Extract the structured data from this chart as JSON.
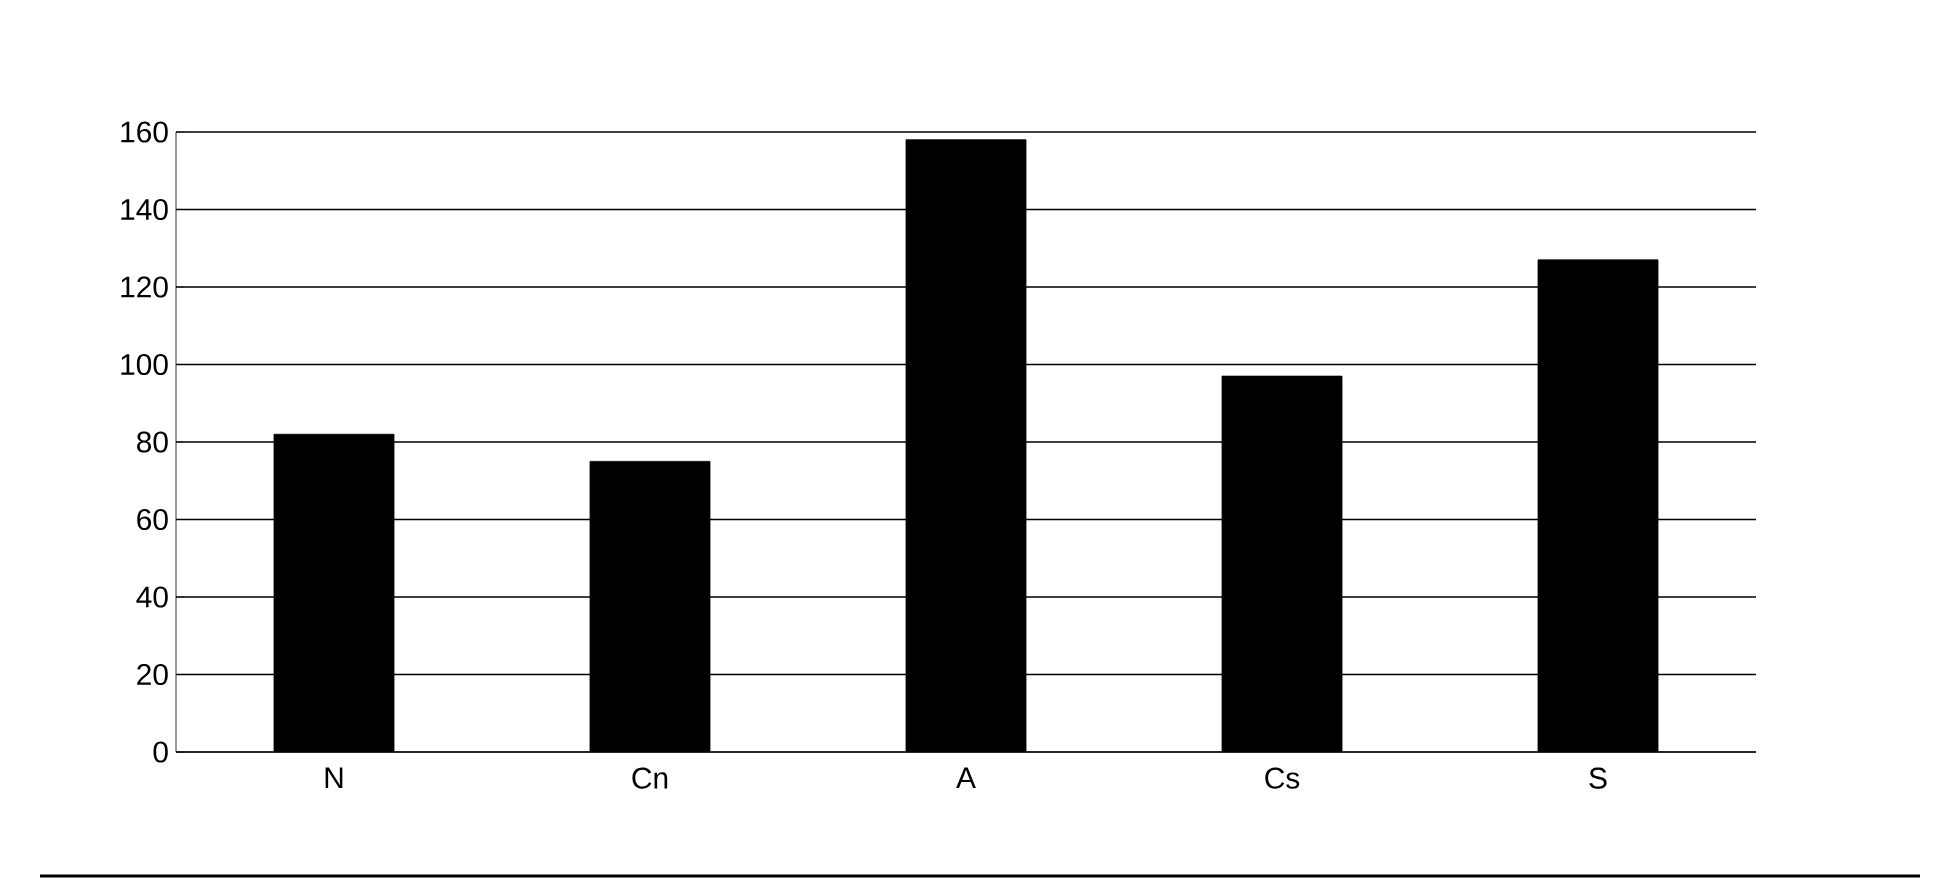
{
  "chart_data": {
    "type": "bar",
    "categories": [
      "N",
      "Cn",
      "A",
      "Cs",
      "S"
    ],
    "values": [
      82,
      75,
      158,
      97,
      127
    ],
    "color": "#000000",
    "ylim": [
      0,
      160
    ],
    "yticks": [
      0,
      20,
      40,
      60,
      80,
      100,
      120,
      140,
      160
    ],
    "grid": "y"
  }
}
